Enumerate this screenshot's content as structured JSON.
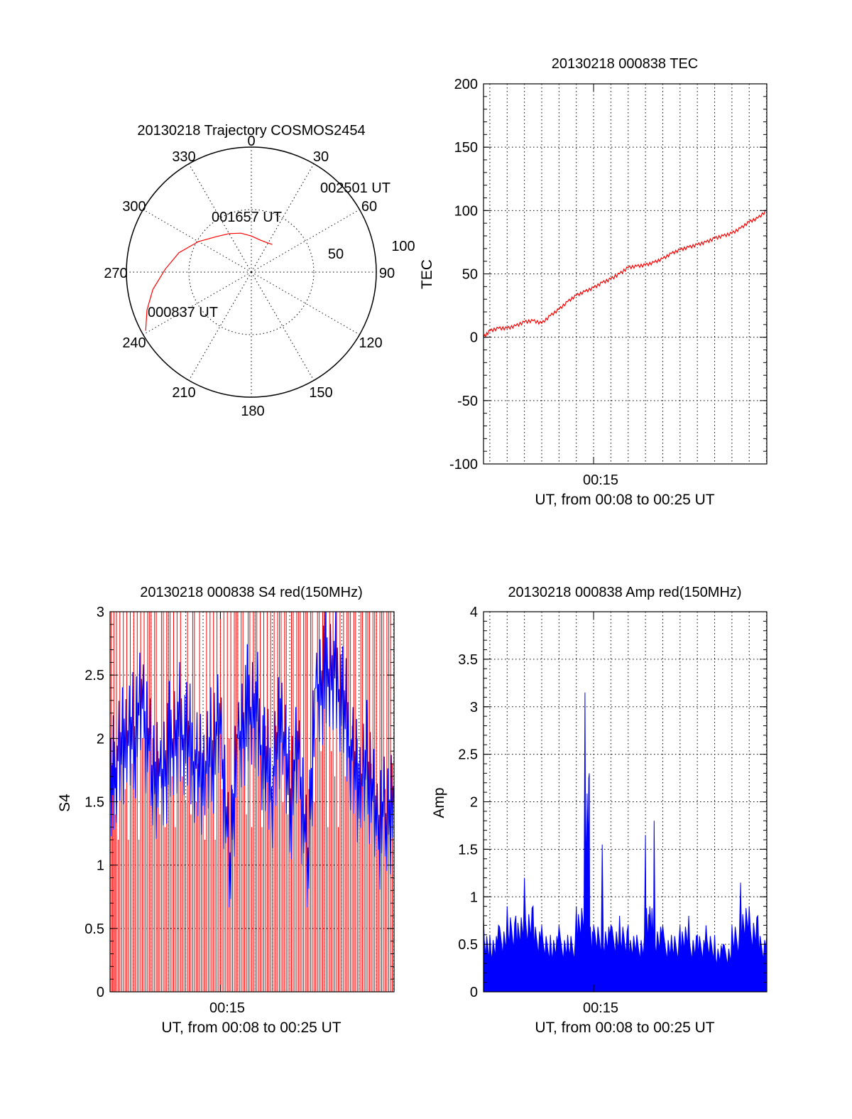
{
  "chart_data": [
    {
      "type": "polar",
      "title": "20130218 Trajectory COSMOS2454",
      "angle_labels": [
        "0",
        "30",
        "60",
        "90",
        "120",
        "150",
        "180",
        "210",
        "240",
        "270",
        "300",
        "330"
      ],
      "radial_labels": [
        "50",
        "100"
      ],
      "rlim": [
        0,
        100
      ],
      "grid": true,
      "series": [
        {
          "color": "#ff0000",
          "points_az_el": [
            [
              241,
              3
            ],
            [
              250,
              10
            ],
            [
              260,
              18
            ],
            [
              272,
              28
            ],
            [
              285,
              36
            ],
            [
              300,
              46
            ],
            [
              315,
              54
            ],
            [
              330,
              58
            ],
            [
              345,
              61
            ],
            [
              0,
              64
            ],
            [
              15,
              66
            ],
            [
              28,
              66
            ],
            [
              37,
              65
            ]
          ]
        }
      ],
      "annotations": [
        {
          "text": "000837 UT",
          "az": 241,
          "el": 3
        },
        {
          "text": "001657 UT",
          "az": 0,
          "el": 40
        },
        {
          "text": "002501 UT",
          "az": 37,
          "el": 65
        }
      ]
    },
    {
      "type": "line",
      "title": "20130218 000838 TEC",
      "xlabel": "UT, from 00:08 to 00:25 UT",
      "ylabel": "TEC",
      "xlim": [
        "00:08:38",
        "00:25:01"
      ],
      "x_ticks": [
        "00:15"
      ],
      "ylim": [
        -100,
        200
      ],
      "y_ticks": [
        "-100",
        "-50",
        "0",
        "50",
        "100",
        "150",
        "200"
      ],
      "grid": true,
      "series": [
        {
          "color": "#ff0000",
          "x": [
            "00:08:38",
            "00:09:00",
            "00:09:30",
            "00:10:00",
            "00:10:30",
            "00:11:00",
            "00:11:30",
            "00:12:00",
            "00:12:30",
            "00:13:00",
            "00:13:30",
            "00:14:00",
            "00:14:30",
            "00:15:00",
            "00:15:30",
            "00:16:00",
            "00:16:30",
            "00:17:00",
            "00:17:30",
            "00:18:00",
            "00:18:30",
            "00:19:00",
            "00:19:30",
            "00:20:00",
            "00:20:30",
            "00:21:00",
            "00:21:30",
            "00:22:00",
            "00:22:30",
            "00:23:00",
            "00:23:30",
            "00:24:00",
            "00:24:30",
            "00:25:01"
          ],
          "values": [
            0,
            5,
            7,
            7,
            9,
            12,
            13,
            11,
            17,
            22,
            28,
            33,
            36,
            39,
            43,
            46,
            50,
            55,
            56,
            57,
            59,
            62,
            66,
            69,
            71,
            73,
            75,
            78,
            80,
            82,
            86,
            91,
            94,
            100
          ]
        }
      ]
    },
    {
      "type": "line",
      "title": "20130218 000838 S4 red(150MHz)",
      "xlabel": "UT, from 00:08 to 00:25 UT",
      "ylabel": "S4",
      "xlim": [
        "00:08:38",
        "00:25:01"
      ],
      "x_ticks": [
        "00:15"
      ],
      "ylim": [
        0,
        3
      ],
      "y_ticks": [
        "0",
        "0.5",
        "1",
        "1.5",
        "2",
        "2.5",
        "3"
      ],
      "grid": true,
      "series": [
        {
          "color": "#0000ff",
          "x": [
            "00:08:38",
            "00:09:00",
            "00:09:30",
            "00:10:00",
            "00:10:30",
            "00:11:00",
            "00:11:30",
            "00:12:00",
            "00:12:30",
            "00:13:00",
            "00:13:30",
            "00:14:00",
            "00:14:30",
            "00:15:00",
            "00:15:30",
            "00:16:00",
            "00:16:30",
            "00:17:00",
            "00:17:30",
            "00:18:00",
            "00:18:30",
            "00:19:00",
            "00:19:30",
            "00:20:00",
            "00:20:30",
            "00:21:00",
            "00:21:30",
            "00:22:00",
            "00:22:30",
            "00:23:00",
            "00:23:30",
            "00:24:00",
            "00:24:30",
            "00:25:01"
          ],
          "values": [
            1.5,
            1.8,
            1.9,
            2.0,
            2.3,
            1.8,
            1.7,
            1.9,
            2.1,
            2.0,
            1.8,
            1.6,
            1.9,
            2.1,
            1.0,
            2.0,
            2.2,
            2.3,
            1.8,
            1.6,
            2.1,
            1.5,
            1.9,
            1.0,
            2.4,
            2.5,
            2.6,
            2.3,
            1.9,
            1.5,
            1.8,
            1.3,
            1.4,
            1.5
          ]
        },
        {
          "color": "#ff0000",
          "x": [
            "00:08:38",
            "00:09:00",
            "00:09:30",
            "00:10:00",
            "00:10:30",
            "00:11:00",
            "00:11:30",
            "00:12:00",
            "00:12:30",
            "00:13:00",
            "00:13:30",
            "00:14:00",
            "00:14:30",
            "00:15:00",
            "00:15:30",
            "00:16:00",
            "00:16:30",
            "00:17:00",
            "00:17:30",
            "00:18:00",
            "00:18:30",
            "00:19:00",
            "00:19:30",
            "00:20:00",
            "00:20:30",
            "00:21:00",
            "00:21:30",
            "00:22:00",
            "00:22:30",
            "00:23:00",
            "00:23:30",
            "00:24:00",
            "00:24:30",
            "00:25:01"
          ],
          "values": [
            3,
            3,
            0,
            3,
            0,
            3,
            0,
            3,
            3,
            0,
            3,
            0,
            0,
            3,
            0,
            3,
            0,
            3,
            3,
            0,
            3,
            0,
            3,
            3,
            0,
            3,
            3,
            0,
            3,
            0,
            3,
            3,
            0,
            3
          ]
        }
      ]
    },
    {
      "type": "line",
      "title": "20130218 000838 Amp red(150MHz)",
      "xlabel": "UT, from 00:08 to 00:25 UT",
      "ylabel": "Amp",
      "xlim": [
        "00:08:38",
        "00:25:01"
      ],
      "x_ticks": [
        "00:15"
      ],
      "ylim": [
        0,
        4
      ],
      "y_ticks": [
        "0",
        "0.5",
        "1",
        "1.5",
        "2",
        "2.5",
        "3",
        "3.5",
        "4"
      ],
      "grid": true,
      "series": [
        {
          "color": "#0000ff",
          "x": [
            "00:08:38",
            "00:09:00",
            "00:09:30",
            "00:10:00",
            "00:10:30",
            "00:11:00",
            "00:11:30",
            "00:12:00",
            "00:12:30",
            "00:13:00",
            "00:13:30",
            "00:14:00",
            "00:14:30",
            "00:14:45",
            "00:15:00",
            "00:15:30",
            "00:16:00",
            "00:16:30",
            "00:17:00",
            "00:17:30",
            "00:18:00",
            "00:18:15",
            "00:18:30",
            "00:19:00",
            "00:19:30",
            "00:20:00",
            "00:20:30",
            "00:21:00",
            "00:21:30",
            "00:22:00",
            "00:22:30",
            "00:23:00",
            "00:23:30",
            "00:24:00",
            "00:24:30",
            "00:25:01"
          ],
          "values": [
            0.8,
            0.6,
            0.7,
            0.9,
            0.8,
            1.2,
            0.9,
            0.7,
            0.6,
            0.7,
            0.6,
            0.9,
            3.15,
            2.3,
            0.7,
            1.55,
            0.7,
            0.8,
            0.7,
            0.6,
            1.65,
            0.9,
            1.8,
            0.7,
            0.6,
            0.7,
            0.8,
            0.6,
            0.7,
            0.6,
            0.5,
            0.7,
            1.15,
            0.9,
            0.8,
            0.6
          ]
        }
      ]
    }
  ]
}
